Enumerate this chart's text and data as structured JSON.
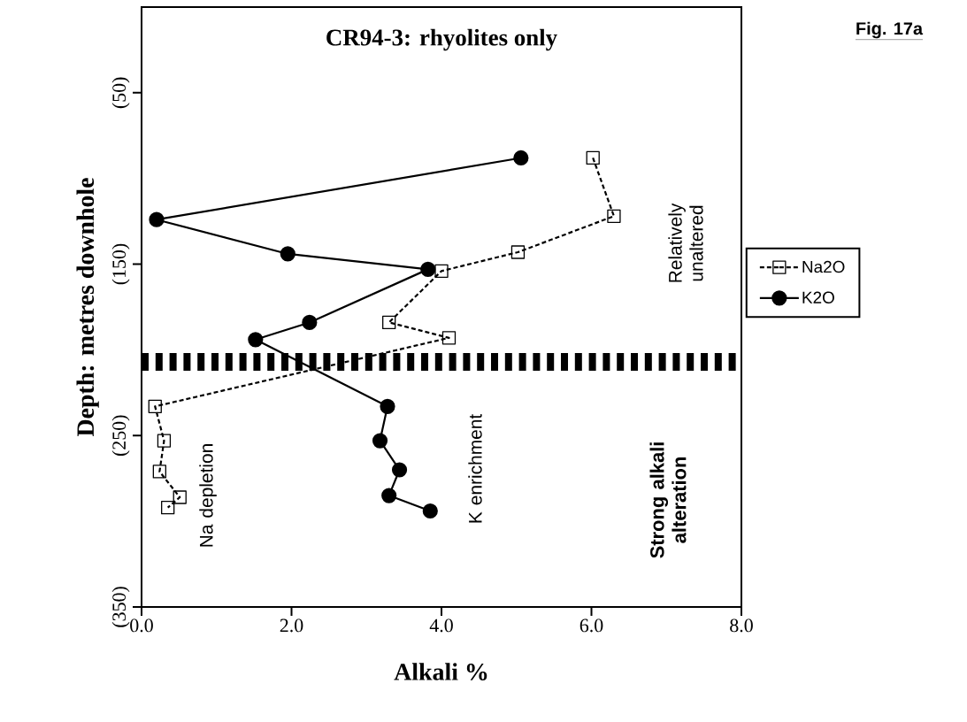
{
  "chart_data": {
    "type": "line",
    "title": "CR94-3: rhyolites only",
    "xlabel": "Alkali %",
    "ylabel": "Depth: metres downhole",
    "xlim": [
      0,
      8
    ],
    "xticks": [
      {
        "value": 0,
        "label": "0.0"
      },
      {
        "value": 2,
        "label": "2.0"
      },
      {
        "value": 4,
        "label": "4.0"
      },
      {
        "value": 6,
        "label": "6.0"
      },
      {
        "value": 8,
        "label": "8.0"
      }
    ],
    "ylim": [
      350,
      0
    ],
    "yticks": [
      {
        "value": 50,
        "label": "(50)"
      },
      {
        "value": 150,
        "label": "(150)"
      },
      {
        "value": 250,
        "label": "(250)"
      },
      {
        "value": 350,
        "label": "(350)"
      }
    ],
    "series": [
      {
        "name": "Na2O",
        "color": "#000000",
        "marker": "square",
        "line_style": "dashed",
        "x": [
          6.02,
          6.3,
          5.02,
          4.0,
          3.3,
          4.1,
          0.18,
          0.3,
          0.24,
          0.51,
          0.35
        ],
        "values": [
          88,
          122,
          143,
          154,
          184,
          193,
          233,
          253,
          271,
          286,
          292
        ]
      },
      {
        "name": "K2O",
        "color": "#000000",
        "marker": "circle",
        "line_style": "solid",
        "x": [
          5.06,
          0.2,
          1.95,
          3.82,
          2.24,
          1.52,
          3.28,
          3.18,
          3.44,
          3.3,
          3.85
        ],
        "values": [
          88,
          124,
          144,
          153,
          184,
          194,
          233,
          253,
          270,
          285,
          294
        ]
      }
    ],
    "ref_lines": [
      {
        "axis": "y",
        "value": 207,
        "line_style": "dashed",
        "color": "#000000"
      }
    ],
    "legend": "right",
    "annotations": [
      "Relatively unaltered",
      "Strong alkali alteration",
      "Na depletion",
      "K enrichment",
      "Fig.  17a"
    ]
  }
}
